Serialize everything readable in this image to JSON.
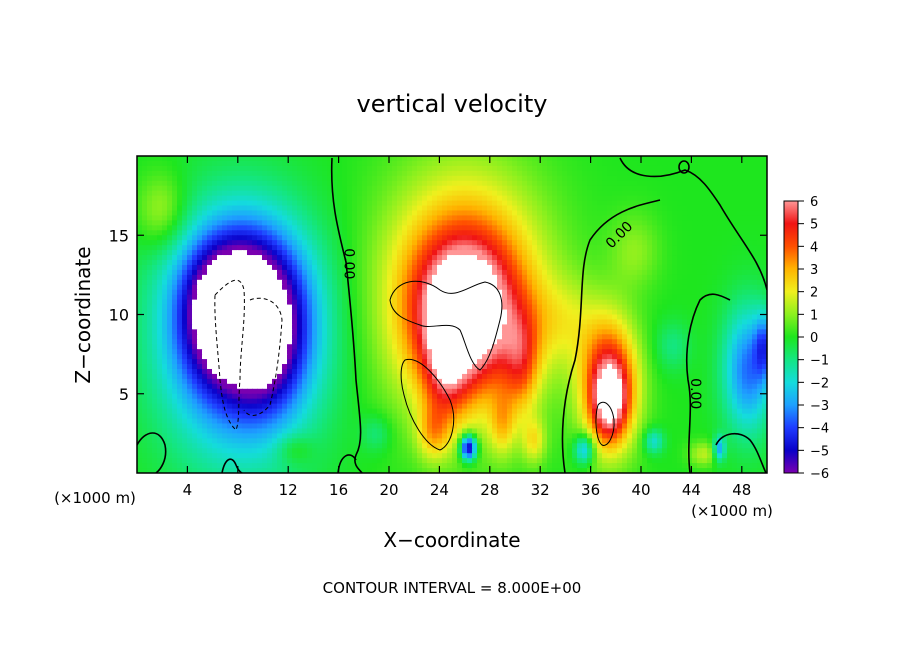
{
  "chart_data": {
    "type": "heatmap",
    "title": "vertical velocity",
    "xlabel": "X−coordinate",
    "ylabel": "Z−coordinate",
    "x_units": "(×1000 m)",
    "x_ticks": [
      4,
      8,
      12,
      16,
      20,
      24,
      28,
      32,
      36,
      40,
      44,
      48
    ],
    "y_ticks": [
      5,
      10,
      15
    ],
    "xlim": [
      0,
      50
    ],
    "ylim": [
      0,
      20
    ],
    "footer": "CONTOUR INTERVAL = 8.000E+00",
    "colorbar": {
      "ticks": [
        "6",
        "5",
        "4",
        "3",
        "2",
        "1",
        "0",
        "−1",
        "−2",
        "−3",
        "−4",
        "−5",
        "−6"
      ],
      "range": [
        -6,
        6
      ]
    },
    "contour_labels": [
      {
        "text": "0.00",
        "x": 16.8,
        "y": 13.2,
        "rotate": 90
      },
      {
        "text": "0.00",
        "x": 38.3,
        "y": 15.0,
        "rotate": -45
      },
      {
        "text": "0.00",
        "x": 44.3,
        "y": 5.0,
        "rotate": 90
      }
    ],
    "blobs": [
      {
        "x": 8.2,
        "y": 8.3,
        "rx": 7.6,
        "ry": 9.3,
        "v": -4.5
      },
      {
        "x": 8.5,
        "y": 10.5,
        "rx": 5.5,
        "ry": 6.0,
        "v": -6.2
      },
      {
        "x": 6.2,
        "y": 10.3,
        "rx": 3.2,
        "ry": 4.5,
        "v": -1.5
      },
      {
        "x": 10.5,
        "y": 7.5,
        "rx": 3.5,
        "ry": 5.0,
        "v": -1.5
      },
      {
        "x": 2.0,
        "y": 16.5,
        "rx": 2.5,
        "ry": 3.0,
        "v": 1.5
      },
      {
        "x": 26.0,
        "y": 11.5,
        "rx": 8.0,
        "ry": 9.5,
        "v": 3.0
      },
      {
        "x": 26.0,
        "y": 10.5,
        "rx": 6.5,
        "ry": 7.5,
        "v": 3.0
      },
      {
        "x": 26.0,
        "y": 10.0,
        "rx": 4.2,
        "ry": 5.0,
        "v": 4.0
      },
      {
        "x": 24.5,
        "y": 6.5,
        "rx": 2.2,
        "ry": 4.5,
        "v": 2.5
      },
      {
        "x": 30.5,
        "y": 7.0,
        "rx": 1.8,
        "ry": 4.0,
        "v": 2.5
      },
      {
        "x": 23.5,
        "y": 2.5,
        "rx": 1.6,
        "ry": 2.2,
        "v": 2.0
      },
      {
        "x": 29.0,
        "y": 3.0,
        "rx": 1.3,
        "ry": 2.5,
        "v": 1.8
      },
      {
        "x": 31.5,
        "y": 2.0,
        "rx": 1.2,
        "ry": 1.8,
        "v": 1.8
      },
      {
        "x": 26.3,
        "y": 1.6,
        "rx": 0.8,
        "ry": 1.0,
        "v": -6.0
      },
      {
        "x": 37.5,
        "y": 5.5,
        "rx": 2.8,
        "ry": 5.0,
        "v": 5.5
      },
      {
        "x": 37.5,
        "y": 4.5,
        "rx": 1.6,
        "ry": 2.8,
        "v": 3.5
      },
      {
        "x": 35.5,
        "y": 1.5,
        "rx": 1.0,
        "ry": 1.2,
        "v": -3.0
      },
      {
        "x": 34.0,
        "y": 9.5,
        "rx": 4.0,
        "ry": 3.5,
        "v": 1.2
      },
      {
        "x": 39.5,
        "y": 14.0,
        "rx": 2.5,
        "ry": 3.0,
        "v": 1.0
      },
      {
        "x": 48.5,
        "y": 6.5,
        "rx": 2.5,
        "ry": 5.0,
        "v": -3.5
      },
      {
        "x": 49.8,
        "y": 8.0,
        "rx": 1.0,
        "ry": 2.5,
        "v": -2.5
      },
      {
        "x": 41.0,
        "y": 2.0,
        "rx": 1.0,
        "ry": 1.0,
        "v": -2.0
      },
      {
        "x": 46.2,
        "y": 1.5,
        "rx": 0.6,
        "ry": 1.0,
        "v": -3.0
      },
      {
        "x": 42.5,
        "y": 8.0,
        "rx": 1.8,
        "ry": 2.0,
        "v": -1.0
      },
      {
        "x": 45.0,
        "y": 1.2,
        "rx": 1.5,
        "ry": 1.0,
        "v": 1.5
      },
      {
        "x": 19.0,
        "y": 2.5,
        "rx": 1.5,
        "ry": 1.5,
        "v": -1.0
      },
      {
        "x": 12.5,
        "y": 1.5,
        "rx": 1.8,
        "ry": 1.2,
        "v": 1.0
      }
    ]
  }
}
